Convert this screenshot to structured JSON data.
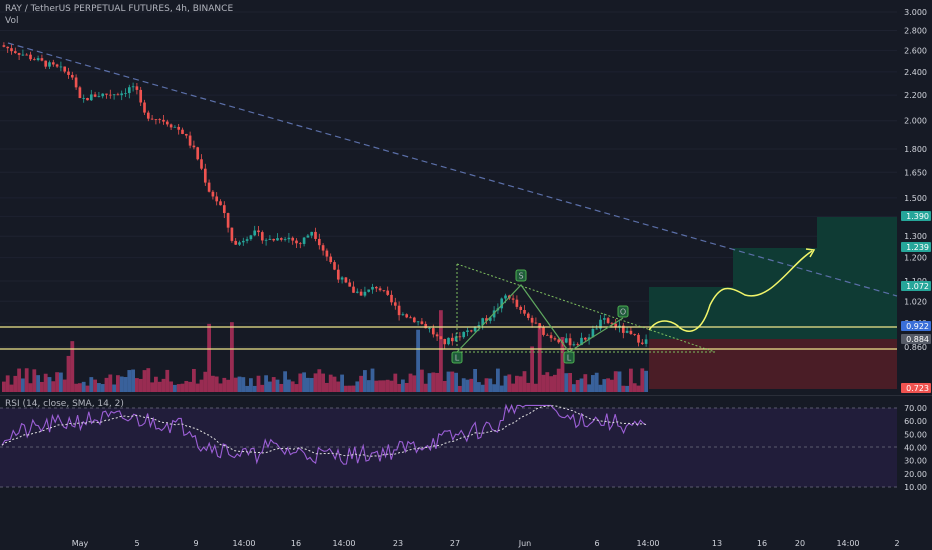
{
  "header": {
    "symbol_line": "RAY / TetherUS PERPETUAL FUTURES, 4h, BINANCE",
    "volume_label": "Vol",
    "rsi_label": "RSI (14, close, SMA, 14, 2)"
  },
  "colors": {
    "background": "#161a25",
    "up": "#26a69a",
    "down": "#ef5350",
    "vol_up": "#3f6fb0",
    "vol_down": "#b0305a",
    "support_line": "#f0e68c",
    "trend_line": "#5b6fa8",
    "rsi_line": "#9c5fd6",
    "rsi_ma": "#e0e0e0",
    "target_zone": "#0f3b34",
    "stop_zone": "#4a1d26",
    "projection": "#f1f56a"
  },
  "chart_data": [
    {
      "type": "candlestick",
      "price_axis": {
        "ticks": [
          "3.000",
          "2.800",
          "2.600",
          "2.400",
          "2.200",
          "2.000",
          "1.800",
          "1.650",
          "1.500",
          "1.400",
          "1.300",
          "1.200",
          "1.100",
          "1.020",
          "0.940",
          "0.860"
        ],
        "scale": "log"
      },
      "time_axis": {
        "labels": [
          "May",
          "5",
          "9",
          "14:00",
          "16",
          "14:00",
          "23",
          "27",
          "Jun",
          "6",
          "14:00",
          "13",
          "16",
          "20",
          "14:00",
          "2"
        ]
      },
      "price_labels": [
        {
          "value": "1.390",
          "color": "#26a69a"
        },
        {
          "value": "1.239",
          "color": "#26a69a"
        },
        {
          "value": "1.072",
          "color": "#26a69a"
        },
        {
          "value": "0.922",
          "color": "#3a6fd8"
        },
        {
          "value": "0.884",
          "color": "#555a66"
        },
        {
          "value": "0.723",
          "color": "#ef5350"
        }
      ],
      "pattern_labels": [
        "L",
        "S",
        "L",
        "O"
      ],
      "key_levels": [
        0.922,
        0.86
      ],
      "approx_close_path": [
        [
          0,
          2.65
        ],
        [
          0.03,
          2.55
        ],
        [
          0.05,
          2.48
        ],
        [
          0.07,
          2.42
        ],
        [
          0.085,
          2.35
        ],
        [
          0.09,
          2.15
        ],
        [
          0.11,
          2.2
        ],
        [
          0.14,
          2.22
        ],
        [
          0.155,
          2.28
        ],
        [
          0.165,
          2.05
        ],
        [
          0.19,
          2.0
        ],
        [
          0.21,
          1.92
        ],
        [
          0.225,
          1.78
        ],
        [
          0.24,
          1.55
        ],
        [
          0.255,
          1.45
        ],
        [
          0.27,
          1.25
        ],
        [
          0.29,
          1.32
        ],
        [
          0.31,
          1.28
        ],
        [
          0.33,
          1.3
        ],
        [
          0.345,
          1.26
        ],
        [
          0.36,
          1.33
        ],
        [
          0.375,
          1.22
        ],
        [
          0.39,
          1.12
        ],
        [
          0.405,
          1.06
        ],
        [
          0.42,
          1.05
        ],
        [
          0.435,
          1.08
        ],
        [
          0.45,
          1.02
        ],
        [
          0.46,
          0.98
        ],
        [
          0.48,
          0.95
        ],
        [
          0.495,
          0.92
        ],
        [
          0.51,
          0.87
        ],
        [
          0.53,
          0.9
        ],
        [
          0.55,
          0.93
        ],
        [
          0.57,
          0.98
        ],
        [
          0.585,
          1.05
        ],
        [
          0.6,
          0.98
        ],
        [
          0.615,
          0.94
        ],
        [
          0.63,
          0.9
        ],
        [
          0.65,
          0.88
        ],
        [
          0.665,
          0.87
        ],
        [
          0.68,
          0.9
        ],
        [
          0.695,
          0.95
        ],
        [
          0.71,
          0.93
        ],
        [
          0.725,
          0.9
        ],
        [
          0.74,
          0.88
        ]
      ]
    },
    {
      "type": "area",
      "name": "RSI",
      "y_axis_ticks": [
        "70.00",
        "60.00",
        "50.00",
        "40.00",
        "30.00",
        "20.00",
        "10.00"
      ],
      "band": [
        30,
        70
      ],
      "midline": 50
    }
  ]
}
